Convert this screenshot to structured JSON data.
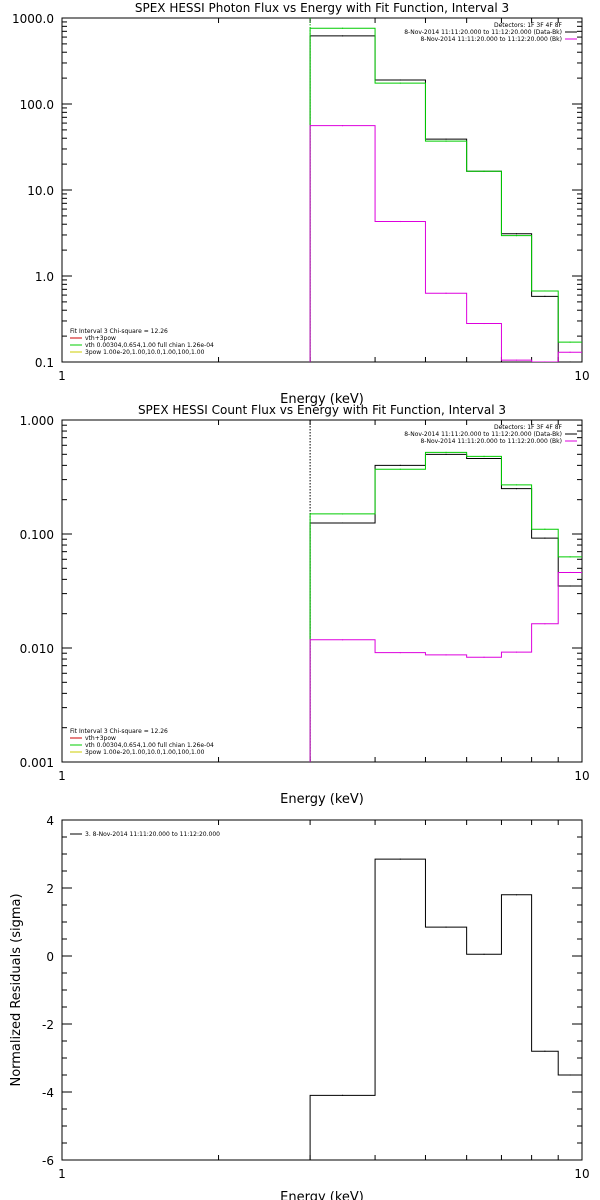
{
  "chart_data": [
    {
      "id": "photon",
      "type": "line",
      "title": "SPEX HESSI Photon Flux vs Energy with Fit Function, Interval 3",
      "xlabel": "Energy (keV)",
      "ylabel": "",
      "xscale": "log",
      "yscale": "log",
      "xlim": [
        1,
        10
      ],
      "ylim": [
        0.1,
        1000
      ],
      "xticks": [
        {
          "value": 1,
          "label": "1"
        },
        {
          "value": 10,
          "label": "10"
        }
      ],
      "yticks": [
        {
          "value": 0.1,
          "label": "0.1"
        },
        {
          "value": 1,
          "label": "1.0"
        },
        {
          "value": 10,
          "label": "10.0"
        },
        {
          "value": 100,
          "label": "100.0"
        },
        {
          "value": 1000,
          "label": "1000.0"
        }
      ],
      "grid": false,
      "legend_topright": [
        {
          "text": "Detectors: 1F 3F 4F 8F",
          "color": ""
        },
        {
          "text": "8-Nov-2014 11:11:20.000 to 11:12:20.000 (Data-Bk)",
          "color": "#000000"
        },
        {
          "text": "8-Nov-2014 11:11:20.000 to 11:12:20.000 (Bk)",
          "color": "#dd00dd"
        }
      ],
      "legend_bottomleft": [
        {
          "text": "Fit Interval 3   Chi-square = 12.26",
          "color": ""
        },
        {
          "text": "vth+3pow",
          "color": "#cc0000"
        },
        {
          "text": "vth 0.00304,0.654,1.00   full chian 1.26e-04",
          "color": "#00cc00"
        },
        {
          "text": "3pow 1.00e-20,1.00,10.0,1.00,100,1.00",
          "color": "#cccc00"
        }
      ],
      "vline": {
        "x": 3,
        "color": "#00aa00"
      },
      "series": [
        {
          "key": "data_bk",
          "color": "#000000",
          "edges": [
            3,
            4,
            5,
            6,
            7,
            8,
            9,
            10
          ],
          "values": [
            620,
            190,
            39,
            16.5,
            3.1,
            0.58,
            0.1
          ]
        },
        {
          "key": "fit",
          "color": "#00cc00",
          "edges": [
            3,
            4,
            5,
            6,
            7,
            8,
            9,
            10
          ],
          "values": [
            760,
            175,
            37,
            16.5,
            2.95,
            0.67,
            0.17
          ]
        },
        {
          "key": "bk",
          "color": "#dd00dd",
          "edges": [
            3,
            4,
            5,
            6,
            7,
            8,
            9,
            10
          ],
          "values": [
            56,
            4.3,
            0.63,
            0.28,
            0.105,
            0.096,
            0.13
          ]
        }
      ]
    },
    {
      "id": "count",
      "type": "line",
      "title": "SPEX HESSI Count Flux vs Energy with Fit Function, Interval 3",
      "xlabel": "Energy (keV)",
      "ylabel": "",
      "xscale": "log",
      "yscale": "log",
      "xlim": [
        1,
        10
      ],
      "ylim": [
        0.001,
        1
      ],
      "xticks": [
        {
          "value": 1,
          "label": "1"
        },
        {
          "value": 10,
          "label": "10"
        }
      ],
      "yticks": [
        {
          "value": 0.001,
          "label": "0.001"
        },
        {
          "value": 0.01,
          "label": "0.010"
        },
        {
          "value": 0.1,
          "label": "0.100"
        },
        {
          "value": 1,
          "label": "1.000"
        }
      ],
      "grid": false,
      "legend_topright": [
        {
          "text": "Detectors: 1F 3F 4F 8F",
          "color": ""
        },
        {
          "text": "8-Nov-2014 11:11:20.000 to 11:12:20.000 (Data-Bk)",
          "color": "#000000"
        },
        {
          "text": "8-Nov-2014 11:11:20.000 to 11:12:20.000 (Bk)",
          "color": "#dd00dd"
        }
      ],
      "legend_bottomleft": [
        {
          "text": "Fit Interval 3   Chi-square = 12.26",
          "color": ""
        },
        {
          "text": "vth+3pow",
          "color": "#cc0000"
        },
        {
          "text": "vth 0.00304,0.654,1.00   full chian 1.26e-04",
          "color": "#00cc00"
        },
        {
          "text": "3pow 1.00e-20,1.00,10.0,1.00,100,1.00",
          "color": "#cccc00"
        }
      ],
      "vline": {
        "x": 3,
        "color": "#000000"
      },
      "series": [
        {
          "key": "data_bk",
          "color": "#000000",
          "edges": [
            3,
            4,
            5,
            6,
            7,
            8,
            9,
            10
          ],
          "values": [
            0.125,
            0.4,
            0.5,
            0.46,
            0.25,
            0.092,
            0.035
          ]
        },
        {
          "key": "fit",
          "color": "#00cc00",
          "edges": [
            3,
            4,
            5,
            6,
            7,
            8,
            9,
            10
          ],
          "values": [
            0.15,
            0.37,
            0.52,
            0.48,
            0.27,
            0.11,
            0.063
          ]
        },
        {
          "key": "bk",
          "color": "#dd00dd",
          "edges": [
            3,
            4,
            5,
            6,
            7,
            8,
            9,
            10
          ],
          "values": [
            0.0118,
            0.0091,
            0.0087,
            0.0083,
            0.0092,
            0.0163,
            0.046
          ]
        }
      ]
    },
    {
      "id": "resid",
      "type": "line",
      "title": "",
      "xlabel": "Energy (keV)",
      "ylabel": "Normalized Residuals (sigma)",
      "xscale": "log",
      "yscale": "linear",
      "xlim": [
        1,
        10
      ],
      "ylim": [
        -6,
        4
      ],
      "xticks": [
        {
          "value": 1,
          "label": "1"
        },
        {
          "value": 10,
          "label": "10"
        }
      ],
      "yticks": [
        {
          "value": -6,
          "label": "-6"
        },
        {
          "value": -4,
          "label": "-4"
        },
        {
          "value": -2,
          "label": "-2"
        },
        {
          "value": 0,
          "label": "0"
        },
        {
          "value": 2,
          "label": "2"
        },
        {
          "value": 4,
          "label": "4"
        }
      ],
      "grid": false,
      "legend_topleft": [
        {
          "text": "3.  8-Nov-2014 11:11:20.000 to 11:12:20.000",
          "color": "#000000"
        }
      ],
      "series": [
        {
          "key": "residuals",
          "color": "#000000",
          "edges": [
            3,
            4,
            5,
            6,
            7,
            8,
            9,
            10
          ],
          "values": [
            -4.1,
            2.85,
            0.85,
            0.05,
            1.8,
            -2.8,
            -3.5
          ]
        }
      ]
    }
  ]
}
